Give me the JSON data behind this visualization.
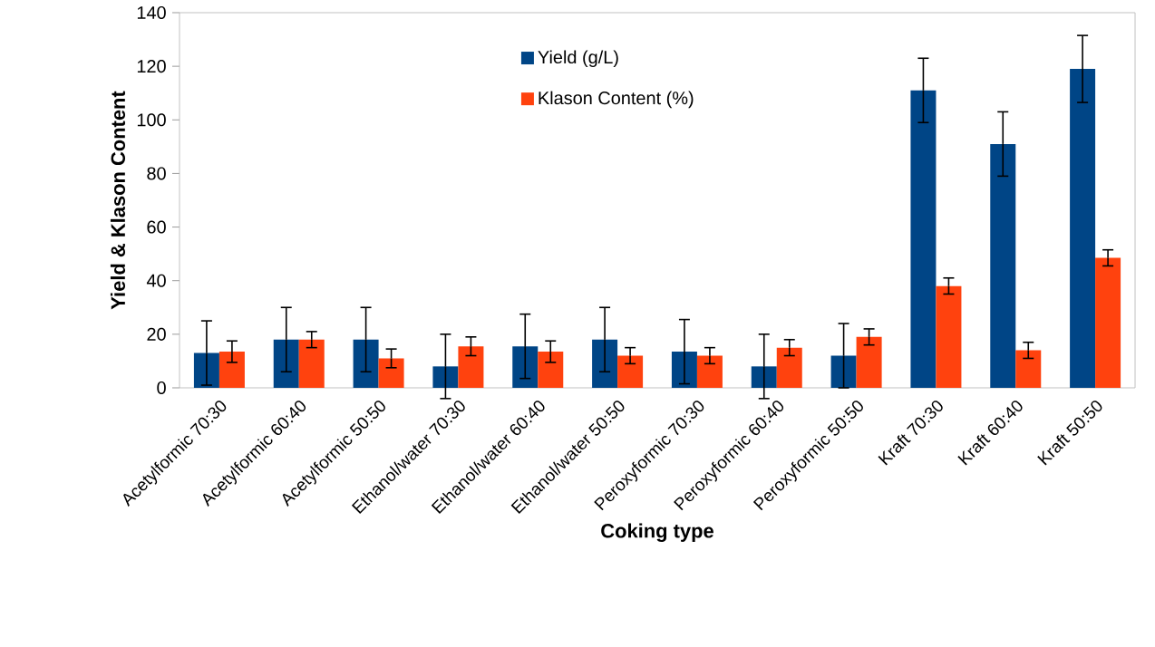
{
  "chart_data": {
    "type": "bar",
    "xlabel": "Coking type",
    "ylabel": "Yield & Klason Content",
    "categories": [
      "Acetylformic 70:30",
      "Acetylformic 60:40",
      "Acetylformic 50:50",
      "Ethanol/water 70:30",
      "Ethanol/water 60:40",
      "Ethanol/water 50:50",
      "Peroxyformic 70:30",
      "Peroxyformic 60:40",
      "Peroxyformic 50:50",
      "Kraft 70:30",
      "Kraft 60:40",
      "Kraft 50:50"
    ],
    "series": [
      {
        "name": "Yield (g/L)",
        "color": "#004586",
        "values": [
          13,
          18,
          18,
          8,
          15.5,
          18,
          13.5,
          8,
          12,
          111,
          91,
          119
        ],
        "errors": [
          12,
          12,
          12,
          12,
          12,
          12,
          12,
          12,
          12,
          12,
          12,
          12.5
        ]
      },
      {
        "name": "Klason Content (%)",
        "color": "#ff420e",
        "values": [
          13.5,
          18,
          11,
          15.5,
          13.5,
          12,
          12,
          15,
          19,
          38,
          14,
          48.5
        ],
        "errors": [
          4,
          3,
          3.5,
          3.5,
          4,
          3,
          3,
          3,
          3,
          3,
          3,
          3
        ]
      }
    ],
    "ylim": [
      0,
      140
    ],
    "yticks": [
      0,
      20,
      40,
      60,
      80,
      100,
      120,
      140
    ],
    "legend": "top",
    "grid": false
  }
}
